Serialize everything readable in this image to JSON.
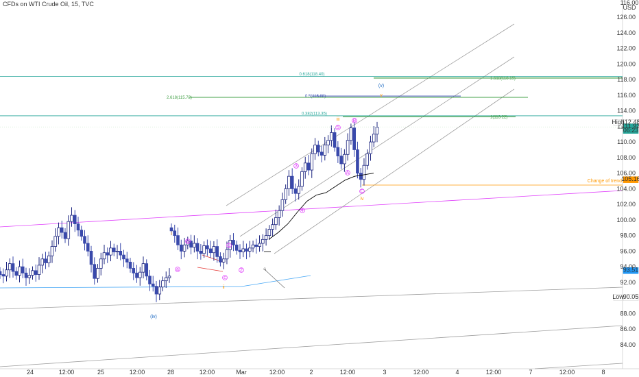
{
  "header": {
    "title": "CFDs on WTI Crude Oil, 15, TVC"
  },
  "chart_data": {
    "type": "candlestick",
    "title": "CFDs on WTI Crude Oil, 15, TVC",
    "currency": "USD",
    "ylim": [
      82.5,
      127.0
    ],
    "y_ticks": [
      "126.00",
      "124.00",
      "122.00",
      "120.00",
      "118.00",
      "116.00",
      "114.00",
      "112.00",
      "110.00",
      "108.00",
      "106.00",
      "104.00",
      "102.00",
      "100.00",
      "98.00",
      "96.00",
      "94.00",
      "92.00",
      "90.00",
      "88.00",
      "86.00",
      "84.00"
    ],
    "y_top_label": "116.00",
    "x_ticks": [
      "24",
      "12:00",
      "25",
      "12:00",
      "28",
      "12:00",
      "Mar",
      "12:00",
      "2",
      "12:00",
      "3",
      "12:00",
      "4",
      "12:00",
      "7",
      "12:00",
      "8"
    ],
    "price_tags": [
      {
        "label": "High",
        "value": "112.48",
        "color": "#ffffff",
        "text_color": "#222222"
      },
      {
        "label": "",
        "value": "111.92",
        "sub": "06:23",
        "color": "#26a69a",
        "text_color": "#ffffff"
      },
      {
        "label": "",
        "value": "105.16",
        "color": "#ff9800",
        "text_color": "#222222"
      },
      {
        "label": "",
        "value": "93.51",
        "color": "#2196f3",
        "text_color": "#ffffff"
      },
      {
        "label": "Low",
        "value": "90.05",
        "color": "#ffffff",
        "text_color": "#222222"
      }
    ],
    "fib_levels": [
      {
        "label": "0.618(118.40)",
        "value": 118.4,
        "color": "#26a69a"
      },
      {
        "label": "1.618(118.19)",
        "value": 118.19,
        "color": "#43a047"
      },
      {
        "label": "0.5(115.88)",
        "value": 115.88,
        "color": "#3f51b5"
      },
      {
        "label": "2.618(115.72)",
        "value": 115.72,
        "color": "#43a047"
      },
      {
        "label": "0.382(113.35)",
        "value": 113.35,
        "color": "#26a69a"
      },
      {
        "label": "1(113.22)",
        "value": 113.22,
        "color": "#43a047"
      }
    ],
    "annotations": {
      "change_of_trend": "Change of trend",
      "wave_top": "(v)",
      "wave_top_sub": "v",
      "wave_iv_blue": "(iv)",
      "wave_i_orange": "i",
      "wave_ii_orange": "ii",
      "wave_iii_orange": "iii",
      "wave_iv_orange": "iv",
      "pink_a": "a",
      "pink_b": "b",
      "pink_c": "c",
      "pink_1": "1",
      "pink_2": "2",
      "pink_3": "3",
      "pink_4": "4",
      "pink_5": "5",
      "pink_A": "A",
      "pink_B": "B",
      "pink_C": "C"
    },
    "series": [
      {
        "values": [
          93.0,
          92.8,
          93.6,
          94.4,
          93.4,
          92.9,
          94.0,
          93.2,
          92.6,
          92.9,
          93.5,
          93.0,
          94.2,
          95.0,
          94.5,
          95.4,
          96.6,
          97.9,
          99.0,
          98.4,
          97.6,
          99.8,
          100.6,
          99.5,
          98.7,
          97.9,
          97.0,
          96.0,
          94.3,
          92.5,
          93.8,
          95.0,
          95.8,
          95.5,
          96.4,
          95.9,
          96.0,
          95.5,
          95.0,
          94.6,
          93.8,
          93.2,
          92.6,
          93.3,
          94.4,
          92.8,
          91.8,
          91.5,
          90.5,
          91.4,
          92.2,
          92.6,
          92.8
        ]
      },
      {
        "values": [
          98.6,
          98.0,
          96.8,
          96.0,
          96.8,
          97.3,
          96.5,
          97.0,
          96.0,
          95.7,
          96.7,
          96.3,
          95.8,
          96.6,
          95.3,
          94.6,
          95.0,
          96.2,
          97.4,
          96.8,
          96.1,
          95.9,
          96.3,
          96.0,
          96.4,
          96.8,
          96.6,
          97.0,
          97.5,
          98.0,
          98.8,
          99.4,
          100.3,
          101.2,
          102.6,
          104.0,
          105.6,
          104.0,
          103.4,
          104.3,
          106.2,
          107.3,
          106.4,
          108.5,
          109.6,
          108.7,
          108.3,
          109.6,
          110.2,
          111.2,
          109.3,
          108.2,
          107.2,
          108.4,
          110.2,
          111.8,
          109.0,
          106.0,
          105.2,
          107.0,
          108.5,
          110.0,
          111.0,
          111.9
        ]
      }
    ],
    "moving_average": [
      97.5,
      98.4,
      99.5,
      101.0,
      102.4,
      103.2,
      103.5,
      104.3,
      105.1,
      105.6,
      105.8,
      106.0
    ]
  }
}
